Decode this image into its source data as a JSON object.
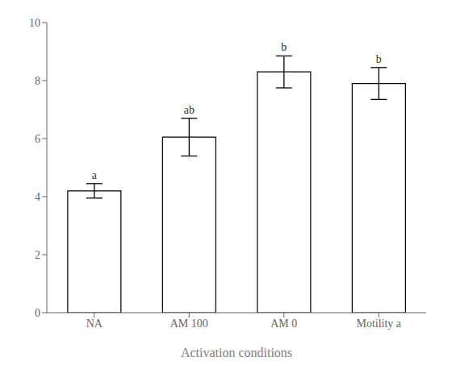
{
  "chart_data": {
    "type": "bar",
    "categories": [
      "NA",
      "AM 100",
      "AM 0",
      "Motility a"
    ],
    "values": [
      4.2,
      6.05,
      8.3,
      7.9
    ],
    "errors": [
      0.25,
      0.65,
      0.55,
      0.55
    ],
    "annotations": [
      "a",
      "ab",
      "b",
      "b"
    ],
    "xlabel": "Activation  conditions",
    "ylim": [
      0,
      10
    ],
    "yticks": [
      0,
      2,
      4,
      6,
      8,
      10
    ],
    "color": "#ffffff",
    "grid": false
  }
}
